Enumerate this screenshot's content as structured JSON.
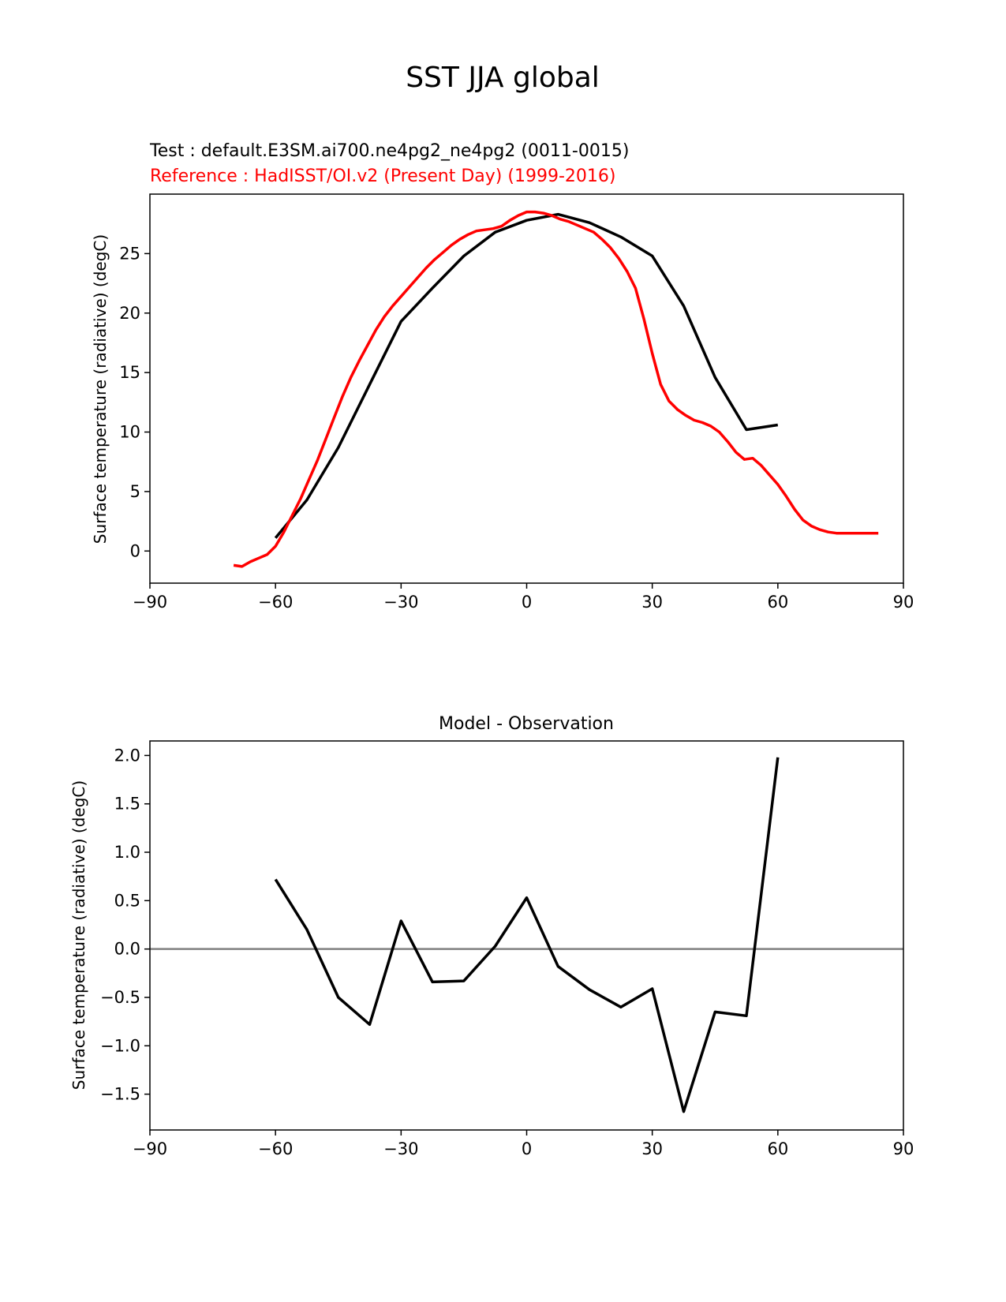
{
  "figure": {
    "title": "SST JJA global"
  },
  "colors": {
    "test": "#000000",
    "reference": "#ff0000",
    "zero_line": "#808080"
  },
  "chart_data": [
    {
      "type": "line",
      "panel": "top",
      "title_test": "Test : default.E3SM.ai700.ne4pg2_ne4pg2 (0011-0015)",
      "title_reference": "Reference : HadISST/OI.v2 (Present Day) (1999-2016)",
      "xlabel": "",
      "ylabel": "Surface temperature (radiative) (degC)",
      "xlim": [
        -90,
        90
      ],
      "ylim": [
        -2.7,
        30.0
      ],
      "xticks": [
        -90,
        -60,
        -30,
        0,
        30,
        60,
        90
      ],
      "xtick_labels": [
        "−90",
        "−60",
        "−30",
        "0",
        "30",
        "60",
        "90"
      ],
      "yticks": [
        0,
        5,
        10,
        15,
        20,
        25
      ],
      "ytick_labels": [
        "0",
        "5",
        "10",
        "15",
        "20",
        "25"
      ],
      "grid": false,
      "series": [
        {
          "role": "test",
          "x": [
            -60,
            -52.5,
            -45,
            -37.5,
            -30,
            -22.5,
            -15,
            -7.5,
            0,
            7.5,
            15,
            22.5,
            30,
            37.5,
            45,
            52.5,
            60
          ],
          "y": [
            1.1,
            4.3,
            8.7,
            14.0,
            19.3,
            22.1,
            24.8,
            26.8,
            27.8,
            28.3,
            27.6,
            26.4,
            24.8,
            20.6,
            14.6,
            10.2,
            10.6
          ]
        },
        {
          "role": "reference",
          "x": [
            -70,
            -68,
            -66,
            -64,
            -62,
            -60,
            -58,
            -56,
            -54,
            -52,
            -50,
            -48,
            -46,
            -44,
            -42,
            -40,
            -38,
            -36,
            -34,
            -32,
            -30,
            -28,
            -26,
            -24,
            -22,
            -20,
            -18,
            -16,
            -14,
            -12,
            -10,
            -8,
            -6,
            -4,
            -2,
            0,
            2,
            4,
            6,
            8,
            10,
            12,
            14,
            16,
            18,
            20,
            22,
            24,
            26,
            28,
            30,
            32,
            34,
            36,
            38,
            40,
            42,
            44,
            46,
            48,
            50,
            52,
            54,
            56,
            58,
            60,
            62,
            64,
            66,
            68,
            70,
            72,
            74,
            76,
            78,
            80,
            82,
            84
          ],
          "y": [
            -1.2,
            -1.3,
            -0.9,
            -0.6,
            -0.3,
            0.4,
            1.6,
            3.0,
            4.4,
            6.0,
            7.6,
            9.4,
            11.2,
            13.0,
            14.6,
            16.0,
            17.3,
            18.6,
            19.7,
            20.6,
            21.4,
            22.2,
            23.0,
            23.8,
            24.5,
            25.1,
            25.7,
            26.2,
            26.6,
            26.9,
            27.0,
            27.1,
            27.3,
            27.8,
            28.2,
            28.5,
            28.5,
            28.4,
            28.2,
            27.9,
            27.7,
            27.4,
            27.1,
            26.8,
            26.2,
            25.5,
            24.6,
            23.5,
            22.1,
            19.5,
            16.6,
            14.0,
            12.6,
            11.9,
            11.4,
            11.0,
            10.8,
            10.5,
            10.0,
            9.2,
            8.3,
            7.7,
            7.8,
            7.2,
            6.4,
            5.6,
            4.6,
            3.5,
            2.6,
            2.1,
            1.8,
            1.6,
            1.5,
            1.5,
            1.5,
            1.5,
            1.5,
            1.5
          ]
        }
      ]
    },
    {
      "type": "line",
      "panel": "bottom",
      "title": "Model - Observation",
      "xlabel": "",
      "ylabel": "Surface temperature (radiative) (degC)",
      "xlim": [
        -90,
        90
      ],
      "ylim": [
        -1.87,
        2.15
      ],
      "xticks": [
        -90,
        -60,
        -30,
        0,
        30,
        60,
        90
      ],
      "xtick_labels": [
        "−90",
        "−60",
        "−30",
        "0",
        "30",
        "60",
        "90"
      ],
      "yticks": [
        -1.5,
        -1.0,
        -0.5,
        0.0,
        0.5,
        1.0,
        1.5,
        2.0
      ],
      "ytick_labels": [
        "−1.5",
        "−1.0",
        "−0.5",
        "0.0",
        "0.5",
        "1.0",
        "1.5",
        "2.0"
      ],
      "grid": false,
      "zero_line": true,
      "series": [
        {
          "role": "difference",
          "x": [
            -60,
            -52.5,
            -45,
            -37.5,
            -30,
            -22.5,
            -15,
            -7.5,
            0,
            7.5,
            15,
            22.5,
            30,
            37.5,
            45,
            52.5,
            60
          ],
          "y": [
            0.72,
            0.2,
            -0.5,
            -0.78,
            0.29,
            -0.34,
            -0.33,
            0.03,
            0.53,
            -0.18,
            -0.42,
            -0.6,
            -0.41,
            -1.68,
            -0.65,
            -0.69,
            1.98
          ]
        }
      ]
    }
  ]
}
